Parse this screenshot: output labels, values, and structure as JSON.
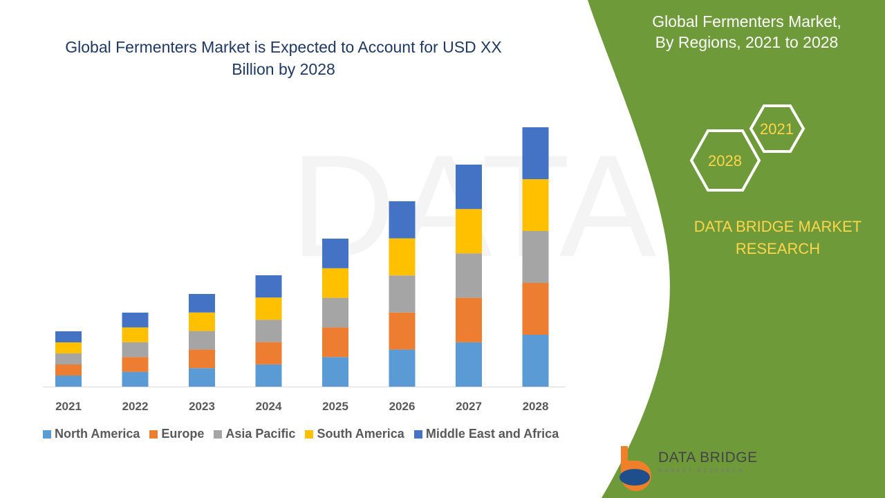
{
  "title": "Global Fermenters Market is Expected to Account for USD XX Billion by 2028",
  "side_panel": {
    "title_line1": "Global Fermenters Market,",
    "title_line2": "By Regions, 2021 to 2028",
    "hex_labels": [
      "2021",
      "2028"
    ],
    "brand_line1": "DATA BRIDGE MARKET",
    "brand_line2": "RESEARCH",
    "color": "#6e9a3a"
  },
  "logo": {
    "name": "DATA BRIDGE",
    "tagline": "MARKET RESEARCH"
  },
  "chart_data": {
    "type": "bar",
    "stacked": true,
    "categories": [
      "2021",
      "2022",
      "2023",
      "2024",
      "2025",
      "2026",
      "2027",
      "2028"
    ],
    "series": [
      {
        "name": "North America",
        "color": "#5b9bd5",
        "values": [
          16,
          21.4,
          26.8,
          32.2,
          42.8,
          53.6,
          64.2,
          75
        ]
      },
      {
        "name": "Europe",
        "color": "#ed7d31",
        "values": [
          16,
          21.4,
          26.8,
          32.2,
          42.8,
          53.6,
          64.2,
          75
        ]
      },
      {
        "name": "Asia Pacific",
        "color": "#a5a5a5",
        "values": [
          16,
          21.4,
          26.8,
          32.2,
          42.8,
          53.6,
          64.2,
          75
        ]
      },
      {
        "name": "South America",
        "color": "#ffc000",
        "values": [
          16,
          21.4,
          26.8,
          32.2,
          42.8,
          53.6,
          64.2,
          75
        ]
      },
      {
        "name": "Middle East and Africa",
        "color": "#4472c4",
        "values": [
          16,
          21.4,
          26.8,
          32.2,
          42.8,
          53.6,
          64.2,
          75
        ]
      }
    ],
    "y_axis_visible": false,
    "grid": false,
    "legend_position": "bottom"
  }
}
